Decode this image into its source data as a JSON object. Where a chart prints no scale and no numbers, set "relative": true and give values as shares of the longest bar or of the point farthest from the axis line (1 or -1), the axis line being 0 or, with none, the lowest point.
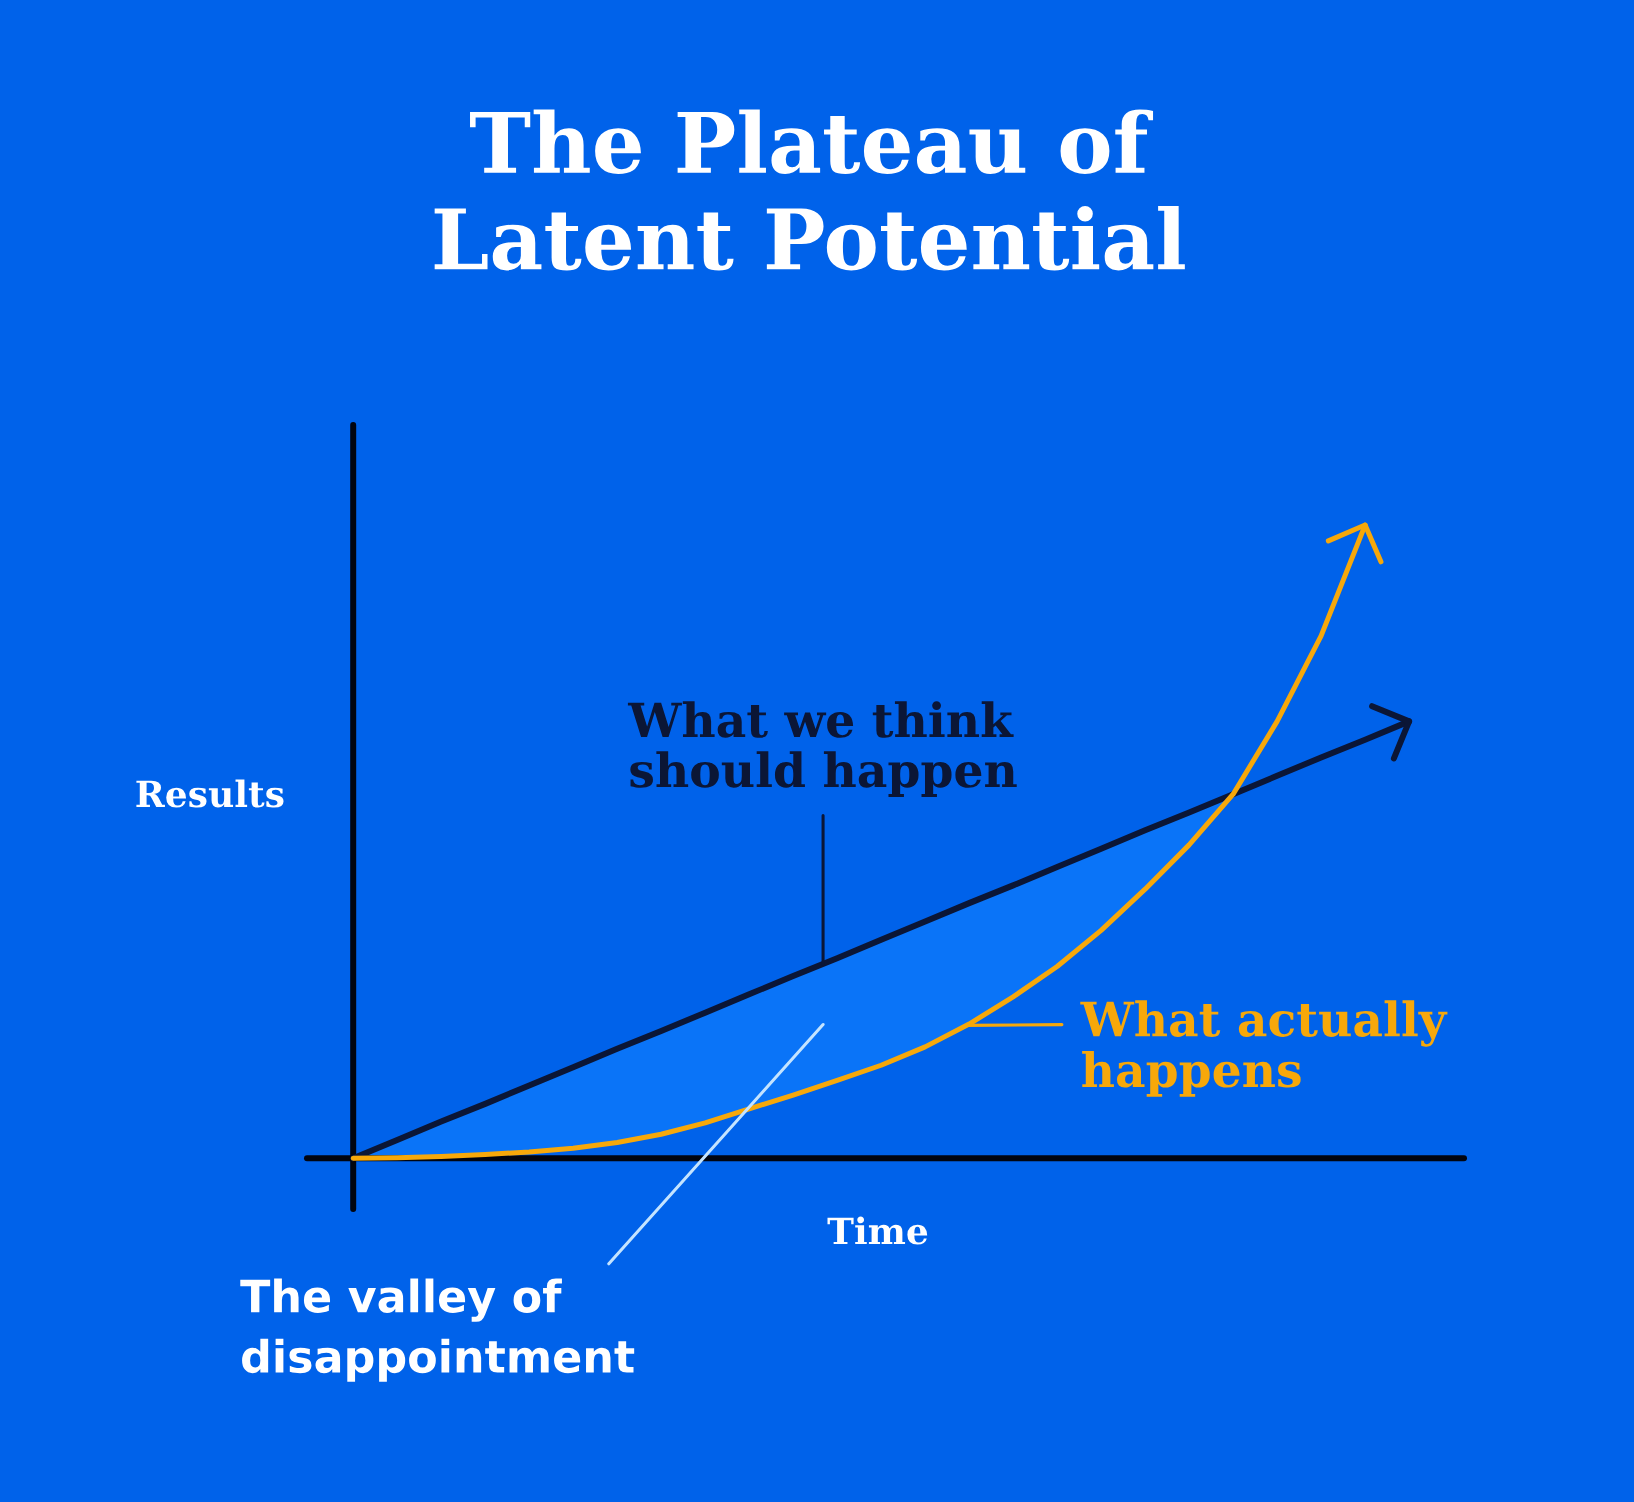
{
  "chart_data": {
    "type": "line",
    "title": "The Plateau of\nLatent Potential",
    "xlabel": "Time",
    "ylabel": "Results",
    "relative": true,
    "line_style": "solid",
    "categories": [
      null,
      null,
      null,
      null,
      null,
      null,
      null,
      null,
      null,
      null,
      null,
      null,
      null,
      null,
      null,
      null,
      null,
      null,
      null,
      null,
      null,
      null,
      null,
      null,
      null
    ],
    "series": [
      {
        "name": "What we think\nshould happen",
        "color": "#0b1636",
        "values": [
          0,
          0.029,
          0.058,
          0.086,
          0.115,
          0.144,
          0.173,
          0.201,
          0.23,
          0.259,
          0.288,
          0.316,
          0.345,
          0.374,
          0.403,
          0.431,
          0.46,
          0.489,
          0.518,
          0.546,
          0.575,
          0.604,
          0.633,
          0.661,
          0.69
        ]
      },
      {
        "name": "What actually\nhappens",
        "color": "#f7a80a",
        "values": [
          0,
          0.001,
          0.003,
          0.006,
          0.01,
          0.016,
          0.025,
          0.038,
          0.056,
          0.078,
          0.1,
          0.123,
          0.147,
          0.176,
          0.212,
          0.255,
          0.303,
          0.36,
          0.425,
          0.495,
          0.575,
          0.69,
          0.825,
          1.0,
          null
        ],
        "lower": [
          0,
          0.001,
          0.003,
          0.006,
          0.01,
          0.016,
          0.025,
          0.038,
          0.056,
          0.078,
          0.1,
          0.123,
          0.147,
          0.176,
          0.212,
          0.255,
          0.303,
          0.36,
          0.425,
          0.495,
          0.575,
          null,
          null,
          null,
          null
        ],
        "upper": [
          0,
          0.029,
          0.058,
          0.086,
          0.115,
          0.144,
          0.173,
          0.201,
          0.23,
          0.259,
          0.288,
          0.316,
          0.345,
          0.374,
          0.403,
          0.431,
          0.46,
          0.489,
          0.518,
          0.546,
          0.575,
          null,
          null,
          null,
          null
        ]
      }
    ],
    "annotations": [
      "The valley of\ndisappointment"
    ]
  }
}
